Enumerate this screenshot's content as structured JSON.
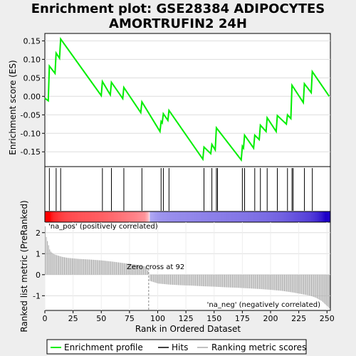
{
  "title_line1": "Enrichment plot: GSE28384 ADIPOCYTES",
  "title_line2": "AMORTRUFIN2 24H",
  "colors": {
    "es_line": "#00ee00",
    "hits": "#000000",
    "ranking": "#aaaaaa",
    "pos_label": "#cc0000",
    "neg_label": "#2222cc"
  },
  "chart_data": [
    {
      "type": "line",
      "name": "enrichment-profile",
      "ylabel": "Enrichment score (ES)",
      "ylim": [
        -0.19,
        0.17
      ],
      "yticks": [
        0.15,
        0.1,
        0.05,
        0.0,
        -0.05,
        -0.1,
        -0.15
      ],
      "ytick_labels": [
        "0.15",
        "0.10",
        "0.05",
        "0.00",
        "-0.05",
        "-0.10",
        "-0.15"
      ],
      "x": [
        0,
        3,
        4,
        9,
        10,
        13,
        14,
        50,
        51,
        58,
        59,
        69,
        70,
        85,
        86,
        102,
        103,
        104,
        105,
        109,
        110,
        140,
        141,
        147,
        148,
        151,
        152,
        174,
        175,
        176,
        177,
        185,
        186,
        190,
        191,
        196,
        197,
        205,
        206,
        214,
        215,
        218,
        219,
        229,
        230,
        236,
        237,
        252
      ],
      "y": [
        -0.005,
        -0.012,
        0.082,
        0.062,
        0.117,
        0.103,
        0.155,
        0.002,
        0.04,
        0.004,
        0.038,
        -0.006,
        0.024,
        -0.044,
        -0.015,
        -0.095,
        -0.068,
        -0.072,
        -0.047,
        -0.065,
        -0.038,
        -0.17,
        -0.137,
        -0.155,
        -0.13,
        -0.145,
        -0.085,
        -0.172,
        -0.135,
        -0.14,
        -0.105,
        -0.14,
        -0.105,
        -0.117,
        -0.078,
        -0.095,
        -0.058,
        -0.095,
        -0.052,
        -0.075,
        -0.05,
        -0.06,
        0.03,
        -0.017,
        0.034,
        0.01,
        0.067,
        0.0
      ]
    },
    {
      "type": "scatter",
      "name": "hits",
      "x": [
        4,
        10,
        14,
        51,
        59,
        70,
        86,
        103,
        105,
        110,
        141,
        148,
        152,
        153,
        175,
        177,
        186,
        191,
        197,
        206,
        215,
        219,
        220,
        230,
        237
      ]
    },
    {
      "type": "area",
      "name": "ranking-metric",
      "ylabel": "Ranked list metric (PreRanked)",
      "xlabel": "Rank in Ordered Dataset",
      "xlim": [
        0,
        253
      ],
      "ylim": [
        -1.7,
        2.5
      ],
      "xticks": [
        0,
        25,
        50,
        75,
        100,
        125,
        150,
        175,
        200,
        225,
        250
      ],
      "xtick_labels": [
        "0",
        "25",
        "50",
        "75",
        "100",
        "125",
        "150",
        "175",
        "200",
        "225",
        "250"
      ],
      "yticks": [
        2,
        1,
        0,
        -1
      ],
      "ytick_labels": [
        "2",
        "1",
        "0",
        "-1"
      ],
      "x": [
        0,
        1,
        2,
        3,
        4,
        5,
        7,
        9,
        12,
        15,
        20,
        30,
        40,
        50,
        60,
        70,
        80,
        88,
        91,
        92,
        93,
        100,
        110,
        120,
        130,
        140,
        150,
        160,
        170,
        180,
        190,
        200,
        210,
        220,
        225,
        230,
        235,
        240,
        245,
        248,
        250,
        252
      ],
      "values": [
        2.3,
        1.8,
        1.6,
        1.4,
        1.2,
        1.1,
        1.0,
        0.95,
        0.9,
        0.85,
        0.8,
        0.75,
        0.72,
        0.68,
        0.62,
        0.55,
        0.48,
        0.4,
        0.2,
        0.0,
        -0.3,
        -0.42,
        -0.47,
        -0.5,
        -0.52,
        -0.55,
        -0.57,
        -0.6,
        -0.62,
        -0.65,
        -0.68,
        -0.72,
        -0.77,
        -0.85,
        -0.9,
        -0.95,
        -1.0,
        -1.1,
        -1.25,
        -1.4,
        -1.5,
        -1.6
      ]
    }
  ],
  "annotations": {
    "pos_label": "'na_pos' (positively correlated)",
    "neg_label": "'na_neg' (negatively correlated)",
    "zero_cross": "Zero cross at 92",
    "zero_cross_x": 92
  },
  "legend": {
    "position": "bottom",
    "items": [
      {
        "label": "Enrichment profile",
        "kind": "line"
      },
      {
        "label": "Hits",
        "kind": "hit"
      },
      {
        "label": "Ranking metric scores",
        "kind": "ranking"
      }
    ]
  }
}
